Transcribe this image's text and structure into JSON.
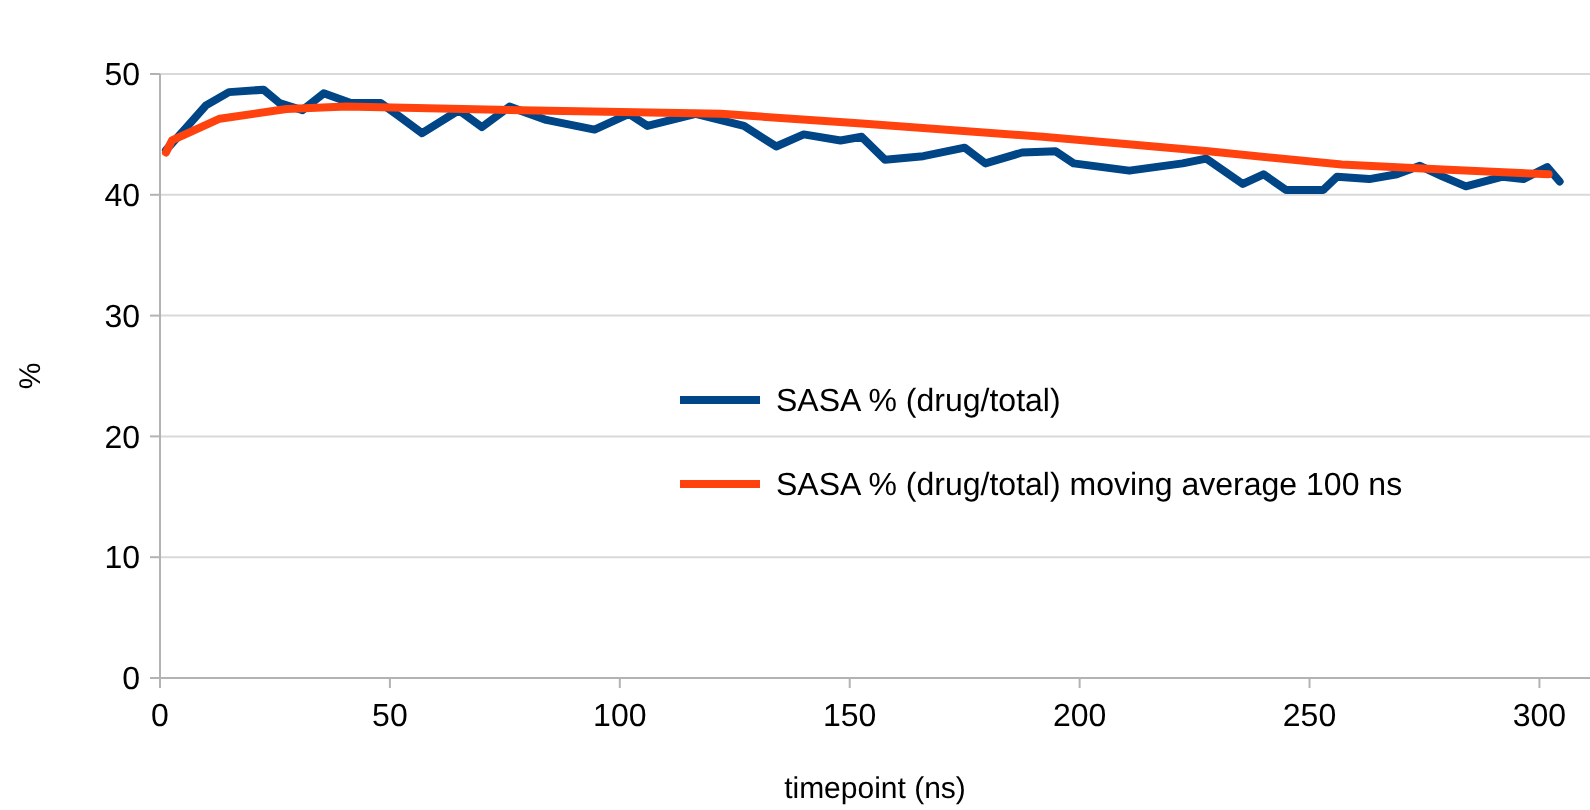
{
  "chart_data": {
    "type": "line",
    "xlabel": "timepoint (ns)",
    "ylabel": "%",
    "xlim": [
      0,
      311
    ],
    "ylim": [
      0,
      50
    ],
    "xticks": [
      0,
      50,
      100,
      150,
      200,
      250,
      300
    ],
    "yticks": [
      0,
      10,
      20,
      30,
      40,
      50
    ],
    "grid": "y",
    "legend": "right",
    "marker": "none",
    "line_style": "solid",
    "series": [
      {
        "name": "SASA % (drug/total)",
        "color": "#004586",
        "x": [
          1.3,
          5.8,
          10,
          15,
          22.5,
          26,
          31,
          35.6,
          41.5,
          48,
          52,
          57,
          65,
          70,
          76,
          84,
          94.5,
          102,
          106,
          116.5,
          127,
          134,
          140,
          148,
          152.6,
          157.7,
          166,
          175,
          179.5,
          187.5,
          194.8,
          198.7,
          210.8,
          222.4,
          227.5,
          235.5,
          240,
          244.9,
          253,
          256,
          263,
          269,
          274,
          279,
          284,
          292,
          296.5,
          301.7,
          304.4
        ],
        "values": [
          43.7,
          45.6,
          47.4,
          48.5,
          48.7,
          47.6,
          47.0,
          48.4,
          47.6,
          47.6,
          46.5,
          45.1,
          47.0,
          45.6,
          47.3,
          46.2,
          45.4,
          46.7,
          45.7,
          46.7,
          45.7,
          44.0,
          45.0,
          44.5,
          44.8,
          42.9,
          43.2,
          43.9,
          42.6,
          43.5,
          43.6,
          42.6,
          42.0,
          42.6,
          43.0,
          40.9,
          41.7,
          40.4,
          40.4,
          41.5,
          41.3,
          41.7,
          42.4,
          41.5,
          40.7,
          41.5,
          41.3,
          42.3,
          41.1
        ]
      },
      {
        "name": "SASA % (drug/total) moving average 100 ns",
        "color": "#ff420e",
        "x": [
          1.3,
          2.6,
          13,
          27.5,
          40.5,
          78.5,
          122,
          152.6,
          192,
          228,
          257,
          279,
          302
        ],
        "values": [
          43.5,
          44.5,
          46.3,
          47.1,
          47.3,
          47.0,
          46.7,
          45.9,
          44.8,
          43.6,
          42.5,
          42.1,
          41.7
        ]
      }
    ]
  }
}
